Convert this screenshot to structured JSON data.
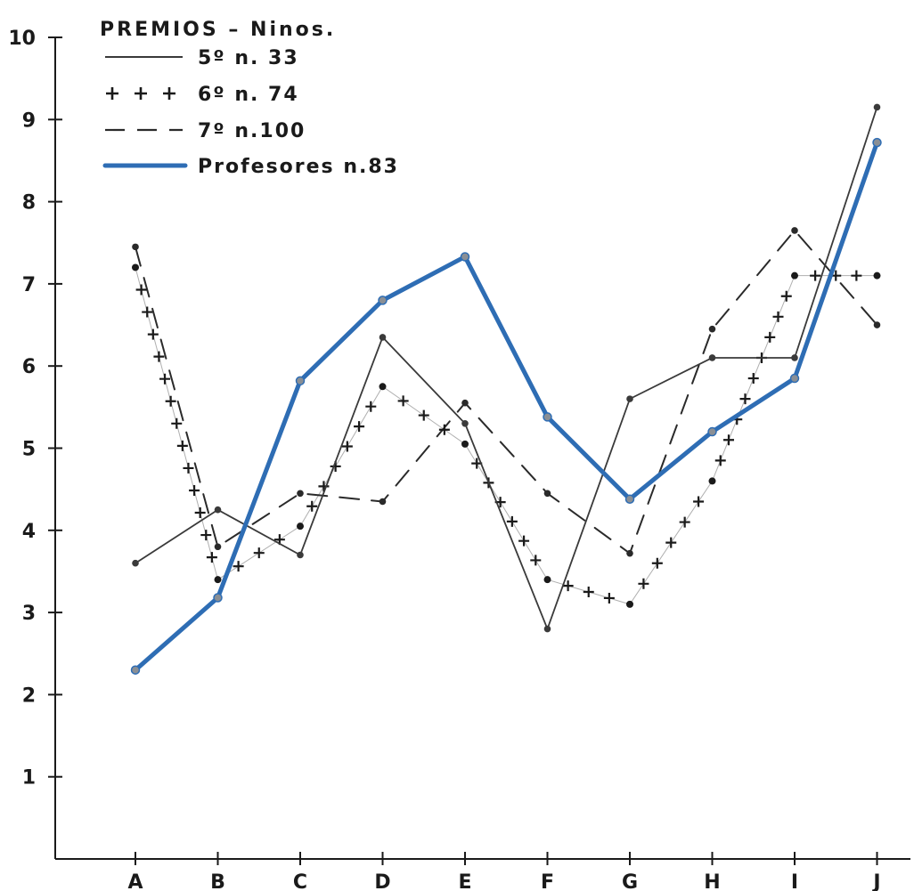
{
  "chart_data": {
    "type": "line",
    "title": "",
    "xlabel": "",
    "ylabel": "",
    "categories": [
      "A",
      "B",
      "C",
      "D",
      "E",
      "F",
      "G",
      "H",
      "I",
      "J"
    ],
    "y_ticks": [
      "1",
      "2",
      "3",
      "4",
      "5",
      "6",
      "7",
      "8",
      "9",
      "10"
    ],
    "ylim": [
      0,
      10.5
    ],
    "grid": false,
    "legend": {
      "placement": "top-left",
      "title": "PREMIOS – Ninos."
    },
    "series": [
      {
        "name": "5º  n.  33",
        "style": "solid-thin",
        "color": "#3a3a3a",
        "values": [
          3.6,
          4.25,
          3.7,
          6.35,
          5.3,
          2.8,
          5.6,
          6.1,
          6.1,
          9.15
        ]
      },
      {
        "name": "6º  n.  74",
        "style": "plus-markers",
        "color": "#1a1a1a",
        "values": [
          7.2,
          3.4,
          4.05,
          5.75,
          5.05,
          3.4,
          3.1,
          4.6,
          7.1,
          7.1
        ]
      },
      {
        "name": "7º  n.100",
        "style": "dashed",
        "color": "#2a2a2a",
        "values": [
          7.45,
          3.8,
          4.45,
          4.35,
          5.55,
          4.45,
          3.72,
          6.45,
          7.65,
          6.5
        ]
      },
      {
        "name": "Profesores n.83",
        "style": "solid-thick",
        "color": "#2e6db4",
        "values": [
          2.3,
          3.18,
          5.82,
          6.8,
          7.33,
          5.38,
          4.38,
          5.2,
          5.85,
          8.72
        ]
      }
    ]
  }
}
